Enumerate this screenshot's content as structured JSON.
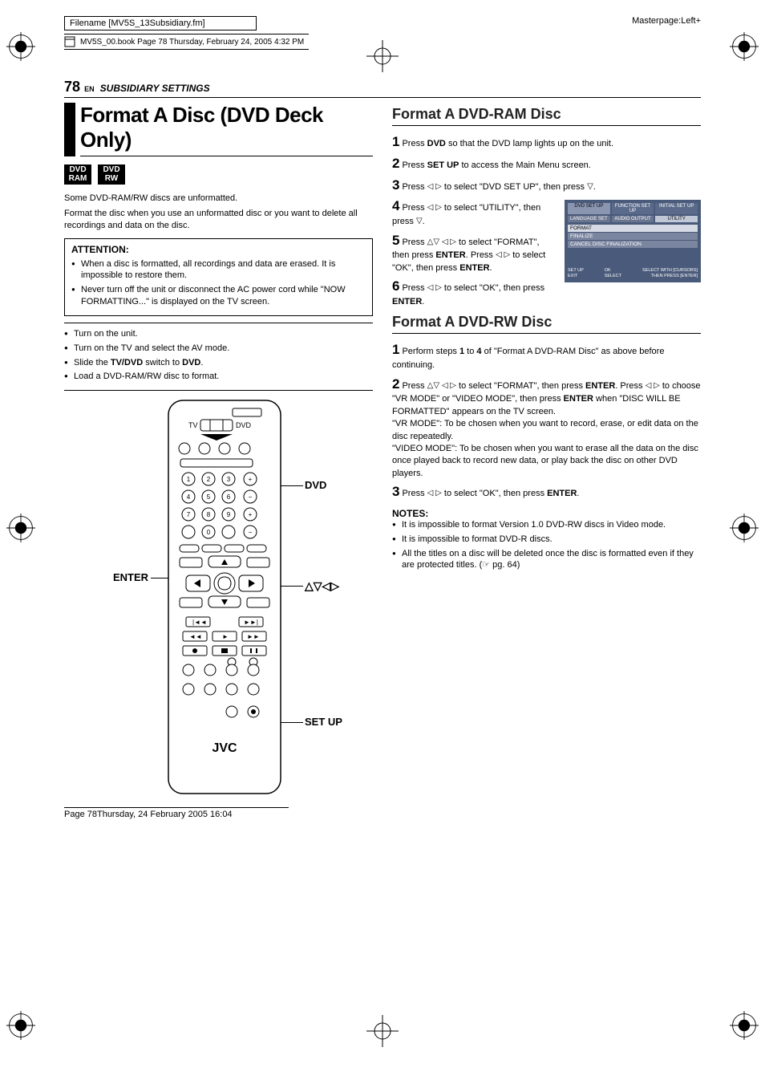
{
  "meta": {
    "filename": "Filename [MV5S_13Subsidiary.fm]",
    "bookline": "MV5S_00.book  Page 78  Thursday, February 24, 2005  4:32 PM",
    "masterpage": "Masterpage:Left+",
    "page_number": "78",
    "lang": "EN",
    "section": "SUBSIDIARY SETTINGS",
    "footer": "Page 78Thursday, 24 February 2005  16:04"
  },
  "left": {
    "title": "Format A Disc (DVD Deck Only)",
    "badges": [
      "DVD\nRAM",
      "DVD\nRW"
    ],
    "intro1": "Some DVD-RAM/RW discs are unformatted.",
    "intro2": "Format the disc when you use an unformatted disc or you want to delete all recordings and data on the disc.",
    "attention_hd": "ATTENTION:",
    "attention": [
      "When a disc is formatted, all recordings and data are erased. It is impossible to restore them.",
      "Never turn off the unit or disconnect the AC power cord while \"NOW FORMATTING...\" is displayed on the TV screen."
    ],
    "prep": [
      "Turn on the unit.",
      "Turn on the TV and select the AV mode.",
      "Slide the TV/DVD switch to DVD.",
      "Load a DVD-RAM/RW disc to format."
    ],
    "prep_bold": {
      "2": [
        "TV/DVD",
        "DVD"
      ]
    },
    "callouts": {
      "enter": "ENTER",
      "dvd": "DVD",
      "arrows": "△▽◁▷",
      "setup": "SET UP"
    },
    "brand": "JVC"
  },
  "right": {
    "h_ram": "Format A DVD-RAM Disc",
    "ram_steps": [
      {
        "n": "1",
        "html": "Press <b>DVD</b> so that the DVD lamp lights up on the unit."
      },
      {
        "n": "2",
        "html": "Press <b>SET UP</b> to access the Main Menu screen."
      },
      {
        "n": "3",
        "html": "Press <span class='tri'>◁ ▷</span> to select \"DVD SET UP\", then press <span class='tri'>▽</span>."
      },
      {
        "n": "4",
        "html": "Press <span class='tri'>◁ ▷</span> to select \"UTILITY\", then press <span class='tri'>▽</span>."
      },
      {
        "n": "5",
        "html": "Press <span class='tri'>△▽ ◁ ▷</span> to select \"FORMAT\", then press <b>ENTER</b>. Press <span class='tri'>◁ ▷</span> to select \"OK\", then press <b>ENTER</b>."
      },
      {
        "n": "6",
        "html": "Press <span class='tri'>◁ ▷</span> to select \"OK\", then press <b>ENTER</b>."
      }
    ],
    "osd": {
      "tabs": [
        "DVD SET UP",
        "FUNCTION SET UP",
        "INITIAL SET UP"
      ],
      "active_tab": 0,
      "subtabs": [
        "LANGUAGE SET",
        "AUDIO OUTPUT",
        "UTILITY"
      ],
      "active_subtab": 2,
      "rows": [
        "FORMAT",
        "FINALIZE",
        "CANCEL DISC FINALIZATION"
      ],
      "selected_row": 0,
      "footer_left": "SET UP\nEXIT",
      "footer_mid": "OK\nSELECT",
      "footer_right": "SELECT WITH [CURSORS]\nTHEN PRESS [ENTER]"
    },
    "h_rw": "Format A DVD-RW Disc",
    "rw_steps": [
      {
        "n": "1",
        "html": "Perform steps <b>1</b> to <b>4</b> of \"Format A DVD-RAM Disc\" as above before continuing."
      },
      {
        "n": "2",
        "html": "Press <span class='tri'>△▽ ◁ ▷</span> to select \"FORMAT\", then press <b>ENTER</b>. Press <span class='tri'>◁ ▷</span> to choose \"VR MODE\" or \"VIDEO MODE\", then press <b>ENTER</b> when \"DISC WILL BE FORMATTED\" appears on the TV screen.<br>\"VR MODE\": To be chosen when you want to record, erase, or edit data on the disc repeatedly.<br>\"VIDEO MODE\": To be chosen when you want to erase all the data on the disc once played back to record new data, or play back the disc on other DVD players."
      },
      {
        "n": "3",
        "html": "Press <span class='tri'>◁ ▷</span> to select \"OK\", then press <b>ENTER</b>."
      }
    ],
    "notes_hd": "NOTES:",
    "notes": [
      "It is impossible to format Version 1.0 DVD-RW discs in Video mode.",
      "It is impossible to format DVD-R discs.",
      "All the titles on a disc will be deleted once the disc is formatted even if they are protected titles. (☞ pg. 64)"
    ]
  },
  "colors": {
    "osd_bg": "#4a5a7a",
    "text": "#000000"
  }
}
